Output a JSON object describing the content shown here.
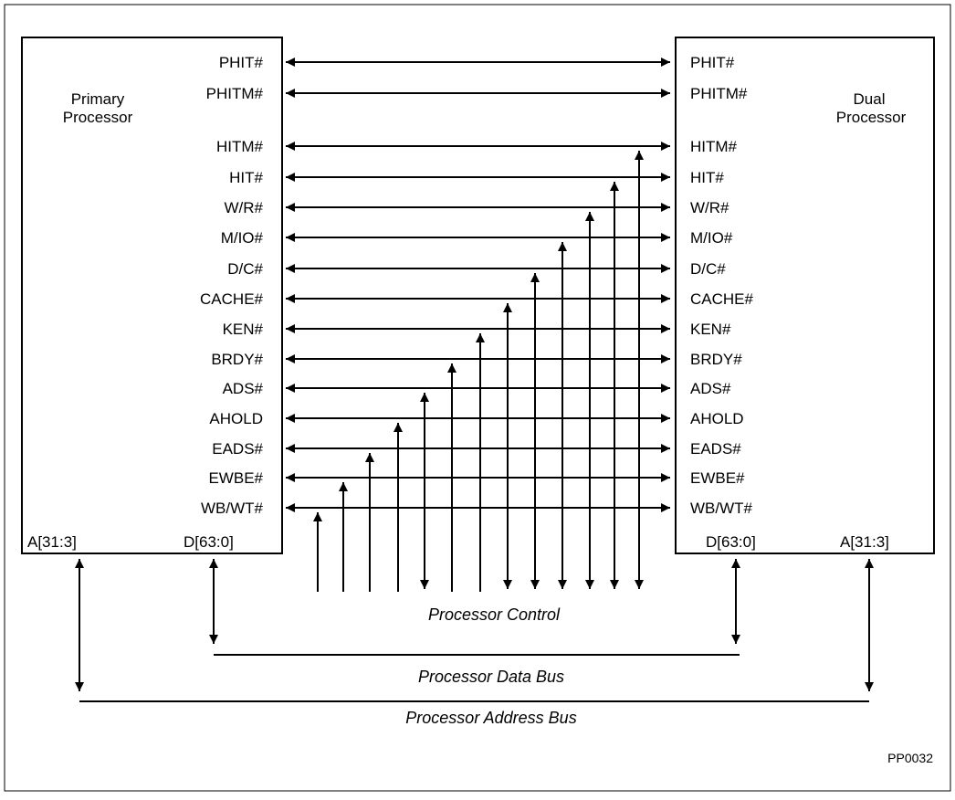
{
  "primary": {
    "title_line1": "Primary",
    "title_line2": "Processor",
    "addr_pin": "A[31:3]",
    "data_pin": "D[63:0]"
  },
  "dual": {
    "title_line1": "Dual",
    "title_line2": "Processor",
    "addr_pin": "A[31:3]",
    "data_pin": "D[63:0]"
  },
  "signals": [
    "PHIT#",
    "PHITM#",
    "HITM#",
    "HIT#",
    "W/R#",
    "M/IO#",
    "D/C#",
    "CACHE#",
    "KEN#",
    "BRDY#",
    "ADS#",
    "AHOLD",
    "EADS#",
    "EWBE#",
    "WB/WT#"
  ],
  "control_lines": [
    {
      "signal": "WB/WT#",
      "direction": "up"
    },
    {
      "signal": "EWBE#",
      "direction": "up"
    },
    {
      "signal": "EADS#",
      "direction": "up"
    },
    {
      "signal": "AHOLD",
      "direction": "up"
    },
    {
      "signal": "ADS#",
      "direction": "both"
    },
    {
      "signal": "BRDY#",
      "direction": "up"
    },
    {
      "signal": "KEN#",
      "direction": "up"
    },
    {
      "signal": "CACHE#",
      "direction": "both"
    },
    {
      "signal": "D/C#",
      "direction": "both"
    },
    {
      "signal": "M/IO#",
      "direction": "both"
    },
    {
      "signal": "W/R#",
      "direction": "both"
    },
    {
      "signal": "HIT#",
      "direction": "both"
    },
    {
      "signal": "HITM#",
      "direction": "both"
    }
  ],
  "labels": {
    "processor_control": "Processor Control",
    "data_bus": "Processor Data Bus",
    "address_bus": "Processor Address Bus",
    "figure_ref": "PP0032"
  }
}
